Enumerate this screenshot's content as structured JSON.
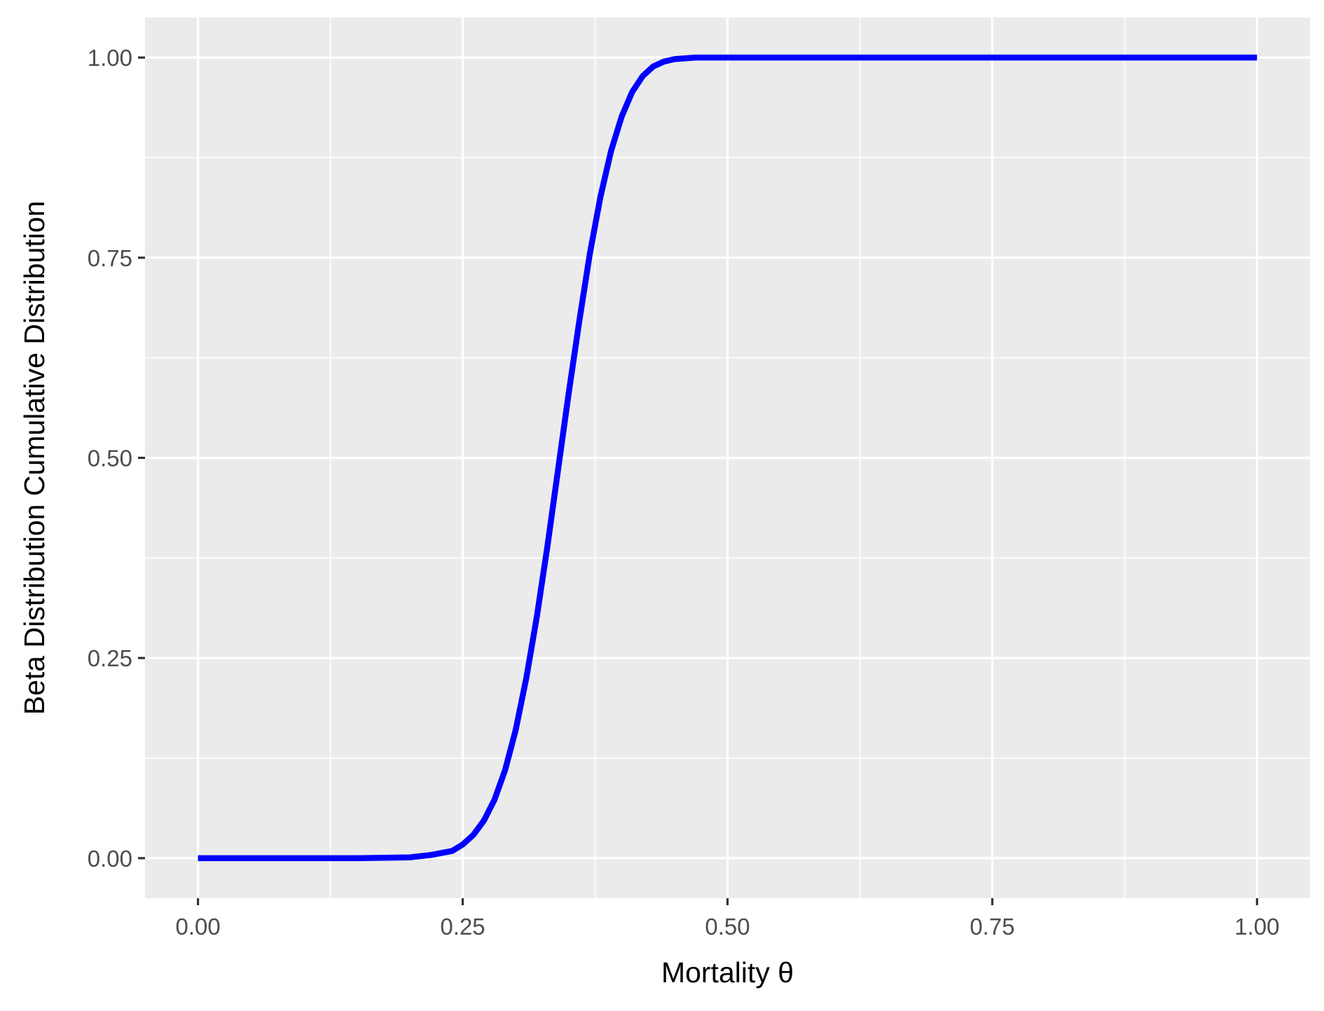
{
  "chart_data": {
    "type": "line",
    "title": "",
    "xlabel": "Mortality θ",
    "ylabel": "Beta Distribution Cumulative Distribution",
    "xlim": [
      -0.05,
      1.05
    ],
    "ylim": [
      -0.05,
      1.05
    ],
    "x_ticks": [
      0,
      0.25,
      0.5,
      0.75,
      1
    ],
    "x_tick_labels": [
      "0.00",
      "0.25",
      "0.50",
      "0.75",
      "1.00"
    ],
    "y_ticks": [
      0,
      0.25,
      0.5,
      0.75,
      1
    ],
    "y_tick_labels": [
      "0.00",
      "0.25",
      "0.50",
      "0.75",
      "1.00"
    ],
    "grid": true,
    "legend": "none",
    "colors": {
      "line": "#0000ff",
      "panel_background": "#ebebeb",
      "grid": "#ffffff",
      "tick_label": "#4d4d4d",
      "axis_title": "#000000"
    },
    "series": [
      {
        "x": [
          0,
          0.1,
          0.15,
          0.2,
          0.22,
          0.24,
          0.25,
          0.26,
          0.27,
          0.28,
          0.29,
          0.3,
          0.31,
          0.32,
          0.33,
          0.34,
          0.35,
          0.36,
          0.37,
          0.38,
          0.39,
          0.4,
          0.41,
          0.42,
          0.43,
          0.44,
          0.45,
          0.46,
          0.47,
          0.48,
          0.5,
          0.55,
          0.6,
          1
        ],
        "values": [
          0,
          0,
          0,
          0.001,
          0.004,
          0.009,
          0.017,
          0.029,
          0.047,
          0.073,
          0.11,
          0.16,
          0.225,
          0.302,
          0.39,
          0.485,
          0.58,
          0.67,
          0.755,
          0.826,
          0.883,
          0.926,
          0.957,
          0.977,
          0.989,
          0.995,
          0.998,
          0.999,
          1,
          1,
          1,
          1,
          1,
          1
        ]
      }
    ]
  }
}
